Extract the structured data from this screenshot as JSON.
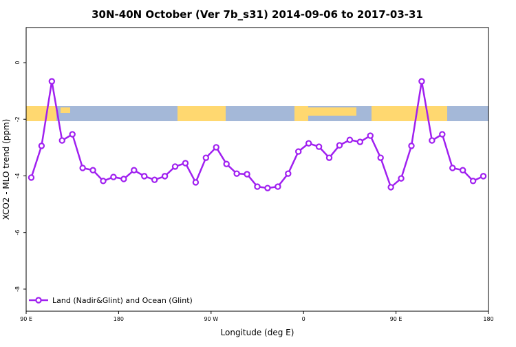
{
  "chart_data": {
    "type": "line",
    "title": "30N-40N October (Ver 7b_s31)   2014-09-06 to 2017-03-31",
    "xlabel": "Longitude (deg E)",
    "ylabel": "XCO2 - MLO trend (ppm)",
    "x": [
      95,
      105,
      115,
      125,
      135,
      145,
      155,
      165,
      175,
      185,
      195,
      205,
      215,
      225,
      235,
      245,
      255,
      265,
      275,
      285,
      295,
      305,
      315,
      325,
      335,
      345,
      355,
      365,
      375,
      385,
      395,
      405,
      415,
      425,
      435,
      445,
      455,
      465,
      475,
      485,
      495,
      505,
      515,
      525,
      535
    ],
    "series": [
      {
        "name": "Land (Nadir&Glint) and Ocean (Glint)",
        "color": "#a020f0",
        "values": [
          -4.06,
          -2.94,
          -0.66,
          -2.75,
          -2.53,
          -3.72,
          -3.8,
          -4.18,
          -4.04,
          -4.11,
          -3.8,
          -4.01,
          -4.14,
          -4.01,
          -3.67,
          -3.55,
          -4.23,
          -3.36,
          -2.99,
          -3.58,
          -3.92,
          -3.94,
          -4.38,
          -4.43,
          -4.38,
          -3.92,
          -3.14,
          -2.85,
          -2.97,
          -3.36,
          -2.92,
          -2.73,
          -2.8,
          -2.58,
          -3.36,
          -4.4,
          -4.09,
          -2.94,
          -0.66,
          -2.75,
          -2.53,
          -3.72,
          -3.8,
          -4.18,
          -4.01
        ]
      }
    ],
    "xlim": [
      90,
      540
    ],
    "xticks": [
      {
        "value": 90,
        "label": "90 E"
      },
      180,
      {
        "value": 270,
        "label": "90 W"
      },
      {
        "value": 360,
        "label": "0"
      },
      {
        "value": 450,
        "label": "90 E"
      },
      {
        "value": 540,
        "label": "180"
      }
    ],
    "ylim": [
      -8.78,
      1.24
    ],
    "yticks": [
      0,
      -2,
      -4,
      -6,
      -8
    ],
    "legend": "bottom-left"
  }
}
